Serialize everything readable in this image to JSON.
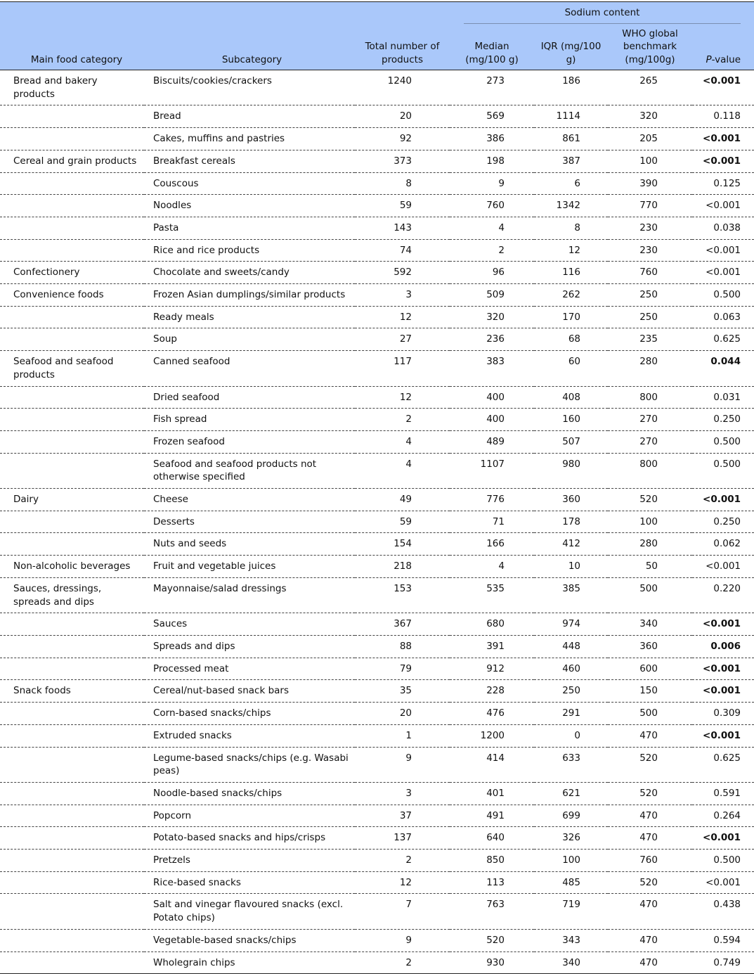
{
  "table": {
    "group_header": "Sodium content",
    "headers": [
      "Main food category",
      "Subcategory",
      "Total number of products",
      "Median (mg/100 g)",
      "IQR (mg/100 g)",
      "WHO global benchmark (mg/100g)",
      "P-value"
    ],
    "rows": [
      {
        "category": "Bread and bakery products",
        "subcategory": "Biscuits/cookies/crackers",
        "total": 1240,
        "median": 273,
        "iqr": 186,
        "who_benchmark": 265,
        "p_value": "<0.001",
        "p_bold": true
      },
      {
        "category": null,
        "subcategory": "Bread",
        "total": 20,
        "median": 569,
        "iqr": 1114,
        "who_benchmark": 320,
        "p_value": "0.118"
      },
      {
        "category": null,
        "subcategory": "Cakes, muffins and pastries",
        "total": 92,
        "median": 386,
        "iqr": 861,
        "who_benchmark": 205,
        "p_value": "<0.001",
        "p_bold": true
      },
      {
        "category": "Cereal and grain products",
        "subcategory": "Breakfast cereals",
        "total": 373,
        "median": 198,
        "iqr": 387,
        "who_benchmark": 100,
        "p_value": "<0.001",
        "p_bold": true
      },
      {
        "category": null,
        "subcategory": "Couscous",
        "total": 8,
        "median": 9,
        "iqr": 6,
        "who_benchmark": 390,
        "p_value": "0.125"
      },
      {
        "category": null,
        "subcategory": "Noodles",
        "total": 59,
        "median": 760,
        "iqr": 1342,
        "who_benchmark": 770,
        "p_value": "<0.001"
      },
      {
        "category": null,
        "subcategory": "Pasta",
        "total": 143,
        "median": 4,
        "iqr": 8,
        "who_benchmark": 230,
        "p_value": "0.038"
      },
      {
        "category": null,
        "subcategory": "Rice and rice products",
        "total": 74,
        "median": 2,
        "iqr": 12,
        "who_benchmark": 230,
        "p_value": "<0.001"
      },
      {
        "category": "Confectionery",
        "subcategory": "Chocolate and sweets/candy",
        "total": 592,
        "median": 96,
        "iqr": 116,
        "who_benchmark": 760,
        "p_value": "<0.001"
      },
      {
        "category": "Convenience foods",
        "subcategory": "Frozen Asian dumplings/similar products",
        "total": 3,
        "median": 509,
        "iqr": 262,
        "who_benchmark": 250,
        "p_value": "0.500"
      },
      {
        "category": null,
        "subcategory": "Ready meals",
        "total": 12,
        "median": 320,
        "iqr": 170,
        "who_benchmark": 250,
        "p_value": "0.063"
      },
      {
        "category": null,
        "subcategory": "Soup",
        "total": 27,
        "median": 236,
        "iqr": 68,
        "who_benchmark": 235,
        "p_value": "0.625"
      },
      {
        "category": "Seafood and seafood products",
        "subcategory": "Canned seafood",
        "total": 117,
        "median": 383,
        "iqr": 60,
        "who_benchmark": 280,
        "p_value": "0.044",
        "p_bold": true
      },
      {
        "category": null,
        "subcategory": "Dried seafood",
        "total": 12,
        "median": 400,
        "iqr": 408,
        "who_benchmark": 800,
        "p_value": "0.031"
      },
      {
        "category": null,
        "subcategory": "Fish spread",
        "total": 2,
        "median": 400,
        "iqr": 160,
        "who_benchmark": 270,
        "p_value": "0.250"
      },
      {
        "category": null,
        "subcategory": "Frozen seafood",
        "total": 4,
        "median": 489,
        "iqr": 507,
        "who_benchmark": 270,
        "p_value": "0.500"
      },
      {
        "category": null,
        "subcategory": "Seafood and seafood products not otherwise specified",
        "total": 4,
        "median": 1107,
        "iqr": 980,
        "who_benchmark": 800,
        "p_value": "0.500"
      },
      {
        "category": "Dairy",
        "subcategory": "Cheese",
        "total": 49,
        "median": 776,
        "iqr": 360,
        "who_benchmark": 520,
        "p_value": "<0.001",
        "p_bold": true
      },
      {
        "category": null,
        "subcategory": "Desserts",
        "total": 59,
        "median": 71,
        "iqr": 178,
        "who_benchmark": 100,
        "p_value": "0.250"
      },
      {
        "category": null,
        "subcategory": "Nuts and seeds",
        "total": 154,
        "median": 166,
        "iqr": 412,
        "who_benchmark": 280,
        "p_value": "0.062"
      },
      {
        "category": "Non-alcoholic beverages",
        "subcategory": "Fruit and vegetable juices",
        "total": 218,
        "median": 4,
        "iqr": 10,
        "who_benchmark": 50,
        "p_value": "<0.001"
      },
      {
        "category": "Sauces, dressings, spreads and dips",
        "subcategory": "Mayonnaise/salad dressings",
        "total": 153,
        "median": 535,
        "iqr": 385,
        "who_benchmark": 500,
        "p_value": "0.220"
      },
      {
        "category": null,
        "subcategory": "Sauces",
        "total": 367,
        "median": 680,
        "iqr": 974,
        "who_benchmark": 340,
        "p_value": "<0.001",
        "p_bold": true
      },
      {
        "category": null,
        "subcategory": "Spreads and dips",
        "total": 88,
        "median": 391,
        "iqr": 448,
        "who_benchmark": 360,
        "p_value": "0.006",
        "p_bold": true
      },
      {
        "category": null,
        "subcategory": "Processed meat",
        "total": 79,
        "median": 912,
        "iqr": 460,
        "who_benchmark": 600,
        "p_value": "<0.001",
        "p_bold": true
      },
      {
        "category": "Snack foods",
        "subcategory": "Cereal/nut-based snack bars",
        "total": 35,
        "median": 228,
        "iqr": 250,
        "who_benchmark": 150,
        "p_value": "<0.001",
        "p_bold": true
      },
      {
        "category": null,
        "subcategory": "Corn-based snacks/chips",
        "total": 20,
        "median": 476,
        "iqr": 291,
        "who_benchmark": 500,
        "p_value": "0.309"
      },
      {
        "category": null,
        "subcategory": "Extruded snacks",
        "total": 1,
        "median": 1200,
        "iqr": 0,
        "who_benchmark": 470,
        "p_value": "<0.001",
        "p_bold": true
      },
      {
        "category": null,
        "subcategory": "Legume-based snacks/chips (e.g. Wasabi peas)",
        "total": 9,
        "median": 414,
        "iqr": 633,
        "who_benchmark": 520,
        "p_value": "0.625"
      },
      {
        "category": null,
        "subcategory": "Noodle-based snacks/chips",
        "total": 3,
        "median": 401,
        "iqr": 621,
        "who_benchmark": 520,
        "p_value": "0.591"
      },
      {
        "category": null,
        "subcategory": "Popcorn",
        "total": 37,
        "median": 491,
        "iqr": 699,
        "who_benchmark": 470,
        "p_value": "0.264"
      },
      {
        "category": null,
        "subcategory": "Potato-based snacks and hips/crisps",
        "total": 137,
        "median": 640,
        "iqr": 326,
        "who_benchmark": 470,
        "p_value": "<0.001",
        "p_bold": true
      },
      {
        "category": null,
        "subcategory": "Pretzels",
        "total": 2,
        "median": 850,
        "iqr": 100,
        "who_benchmark": 760,
        "p_value": "0.500"
      },
      {
        "category": null,
        "subcategory": "Rice-based snacks",
        "total": 12,
        "median": 113,
        "iqr": 485,
        "who_benchmark": 520,
        "p_value": "<0.001"
      },
      {
        "category": null,
        "subcategory": "Salt and vinegar flavoured snacks (excl. Potato chips)",
        "total": 7,
        "median": 763,
        "iqr": 719,
        "who_benchmark": 470,
        "p_value": "0.438"
      },
      {
        "category": null,
        "subcategory": "Vegetable-based snacks/chips",
        "total": 9,
        "median": 520,
        "iqr": 343,
        "who_benchmark": 470,
        "p_value": "0.594"
      },
      {
        "category": null,
        "subcategory": "Wholegrain chips",
        "total": 2,
        "median": 930,
        "iqr": 340,
        "who_benchmark": 470,
        "p_value": "0.749"
      }
    ]
  }
}
